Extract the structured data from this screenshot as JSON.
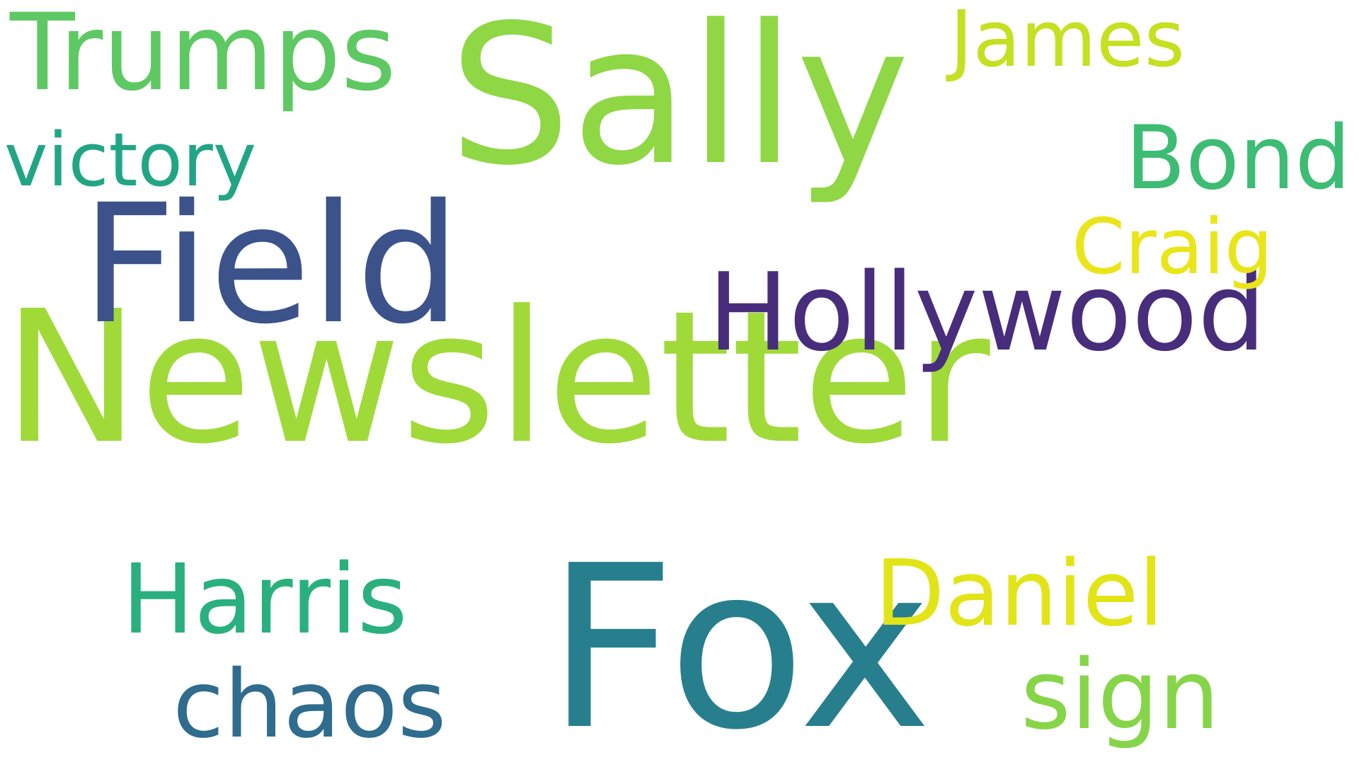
{
  "background_color": "#ffffff",
  "words": [
    {
      "text": "Newsletter",
      "color": "#a0da39"
    },
    {
      "text": "Fox",
      "color": "#277f8e"
    },
    {
      "text": "Field",
      "color": "#3b528b"
    },
    {
      "text": "Sally",
      "color": "#8fd744"
    },
    {
      "text": "Hollywood",
      "color": "#472d7b"
    },
    {
      "text": "Trumps",
      "color": "#5ec962"
    },
    {
      "text": "victory",
      "color": "#21a585"
    },
    {
      "text": "Harris",
      "color": "#2ab07f"
    },
    {
      "text": "chaos",
      "color": "#2f6c8e"
    },
    {
      "text": "Daniel",
      "color": "#e2e418"
    },
    {
      "text": "sign",
      "color": "#86d549"
    },
    {
      "text": "James",
      "color": "#c5e021"
    },
    {
      "text": "Bond",
      "color": "#3dbc74"
    },
    {
      "text": "Craig",
      "color": "#eae51a"
    }
  ]
}
